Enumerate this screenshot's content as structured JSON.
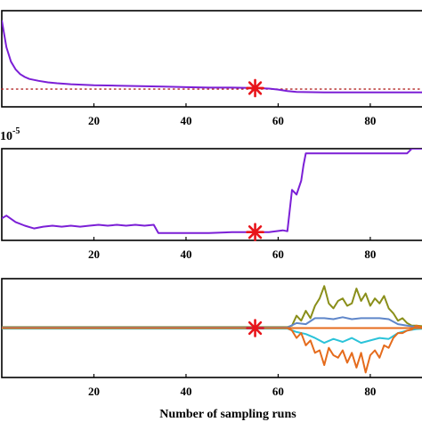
{
  "chart_data": [
    {
      "type": "line",
      "xlim": [
        0,
        92
      ],
      "ylim": [
        0,
        1
      ],
      "x_ticks": [
        20,
        40,
        60,
        80
      ],
      "series": [
        {
          "color": "#7b1fd6",
          "x": [
            0,
            1,
            2,
            3,
            4,
            5,
            6,
            8,
            10,
            12,
            15,
            20,
            25,
            30,
            35,
            40,
            45,
            50,
            55,
            58,
            60,
            62,
            64,
            70,
            80,
            92
          ],
          "y": [
            0.9,
            0.62,
            0.47,
            0.39,
            0.34,
            0.31,
            0.29,
            0.27,
            0.255,
            0.245,
            0.235,
            0.225,
            0.22,
            0.215,
            0.21,
            0.205,
            0.2,
            0.2,
            0.195,
            0.19,
            0.18,
            0.165,
            0.155,
            0.15,
            0.15,
            0.15
          ]
        }
      ],
      "reference_line": {
        "y": 0.185,
        "color": "#b22222",
        "style": "dotted"
      },
      "marker": {
        "x": 55,
        "y": 0.195,
        "symbol": "asterisk",
        "color": "#e8141a"
      }
    },
    {
      "type": "line",
      "exponent_label": {
        "base": "10",
        "power": "-5"
      },
      "xlim": [
        0,
        92
      ],
      "ylim": [
        0,
        1
      ],
      "x_ticks": [
        20,
        40,
        60,
        80
      ],
      "series": [
        {
          "color": "#7b1fd6",
          "x": [
            0,
            1,
            3,
            5,
            7,
            9,
            11,
            13,
            15,
            17,
            19,
            21,
            23,
            25,
            27,
            29,
            31,
            33,
            34,
            35,
            40,
            45,
            50,
            55,
            58,
            61,
            62,
            63,
            64,
            65,
            65.5,
            66,
            70,
            75,
            80,
            85,
            88,
            89,
            90,
            92
          ],
          "y": [
            0.24,
            0.27,
            0.2,
            0.16,
            0.13,
            0.15,
            0.16,
            0.15,
            0.16,
            0.15,
            0.16,
            0.17,
            0.16,
            0.17,
            0.16,
            0.17,
            0.16,
            0.17,
            0.08,
            0.08,
            0.08,
            0.08,
            0.09,
            0.09,
            0.09,
            0.11,
            0.1,
            0.55,
            0.5,
            0.65,
            0.82,
            0.95,
            0.95,
            0.95,
            0.95,
            0.95,
            0.95,
            1.0,
            1.0,
            1.0
          ]
        }
      ],
      "marker": {
        "x": 55,
        "y": 0.09,
        "symbol": "asterisk",
        "color": "#e8141a"
      }
    },
    {
      "type": "line",
      "xlabel": "Number of sampling runs",
      "xlim": [
        0,
        92
      ],
      "ylim": [
        -1,
        1
      ],
      "x_ticks": [
        20,
        40,
        60,
        80
      ],
      "series": [
        {
          "color": "#8a8f1a",
          "x": [
            0,
            62,
            63,
            64,
            65,
            66,
            67,
            68,
            69,
            70,
            71,
            72,
            73,
            74,
            75,
            76,
            77,
            78,
            79,
            80,
            81,
            82,
            83,
            84,
            85,
            86,
            87,
            88,
            89,
            90,
            91,
            92
          ],
          "y": [
            0.02,
            0.02,
            0.05,
            0.25,
            0.15,
            0.35,
            0.2,
            0.45,
            0.6,
            0.85,
            0.5,
            0.4,
            0.55,
            0.6,
            0.45,
            0.5,
            0.8,
            0.55,
            0.7,
            0.45,
            0.6,
            0.5,
            0.65,
            0.4,
            0.3,
            0.15,
            0.2,
            0.1,
            0.05,
            0.05,
            0.04,
            0.03
          ]
        },
        {
          "color": "#5f86c9",
          "x": [
            0,
            62,
            64,
            66,
            68,
            70,
            72,
            74,
            76,
            78,
            80,
            82,
            84,
            86,
            88,
            90,
            92
          ],
          "y": [
            0.01,
            0.01,
            0.1,
            0.08,
            0.2,
            0.2,
            0.18,
            0.22,
            0.18,
            0.2,
            0.2,
            0.2,
            0.18,
            0.08,
            0.05,
            0.02,
            0.01
          ]
        },
        {
          "color": "#2bc3d9",
          "x": [
            0,
            62,
            64,
            66,
            68,
            70,
            72,
            74,
            76,
            78,
            80,
            82,
            84,
            86,
            88,
            90,
            92
          ],
          "y": [
            -0.01,
            -0.01,
            -0.08,
            -0.12,
            -0.2,
            -0.3,
            -0.22,
            -0.28,
            -0.2,
            -0.3,
            -0.25,
            -0.2,
            -0.22,
            -0.1,
            -0.05,
            -0.02,
            -0.01
          ]
        },
        {
          "color": "#e56b1c",
          "x": [
            0,
            62,
            63,
            64,
            65,
            66,
            67,
            68,
            69,
            70,
            71,
            72,
            73,
            74,
            75,
            76,
            77,
            78,
            79,
            80,
            81,
            82,
            83,
            84,
            85,
            86,
            87,
            88,
            89,
            90,
            91,
            92
          ],
          "y": [
            0,
            0,
            -0.05,
            -0.2,
            -0.1,
            -0.35,
            -0.25,
            -0.5,
            -0.45,
            -0.75,
            -0.4,
            -0.55,
            -0.6,
            -0.45,
            -0.7,
            -0.5,
            -0.8,
            -0.5,
            -0.9,
            -0.55,
            -0.45,
            -0.6,
            -0.35,
            -0.4,
            -0.2,
            -0.1,
            -0.1,
            -0.05,
            -0.03,
            0.05,
            0.02,
            0
          ]
        },
        {
          "color": "#e56b1c",
          "x": [
            0,
            92
          ],
          "y": [
            0,
            0
          ]
        }
      ],
      "marker": {
        "x": 55,
        "y": 0,
        "symbol": "asterisk",
        "color": "#e8141a"
      }
    }
  ]
}
